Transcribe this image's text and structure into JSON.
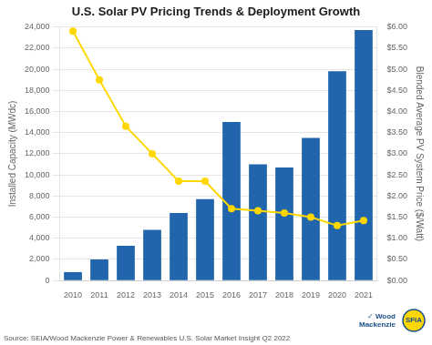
{
  "chart_data": {
    "type": "bar",
    "title": "U.S. Solar PV Pricing Trends & Deployment Growth",
    "categories": [
      "2010",
      "2011",
      "2012",
      "2013",
      "2014",
      "2015",
      "2016",
      "2017",
      "2018",
      "2019",
      "2020",
      "2021"
    ],
    "series": [
      {
        "type": "bar",
        "color": "#2166ac",
        "values": [
          800,
          2000,
          3300,
          4800,
          6400,
          7700,
          15000,
          11000,
          10700,
          13500,
          19800,
          23700
        ]
      },
      {
        "type": "line",
        "color": "#FFD700",
        "axis": "y2",
        "marker": "circle",
        "values": [
          5.9,
          4.75,
          3.65,
          3.0,
          2.35,
          2.35,
          1.7,
          1.65,
          1.6,
          1.5,
          1.3,
          1.42
        ]
      }
    ],
    "ylabel": "Installed Capacity (MWdc)",
    "y2label": "Blended Average PV System Price ($/Watt)",
    "ylim": [
      0,
      24000
    ],
    "yticks": [
      0,
      {
        "value": 2000,
        "label": "2,000"
      },
      {
        "value": 4000,
        "label": "4,000"
      },
      {
        "value": 6000,
        "label": "6,000"
      },
      {
        "value": 8000,
        "label": "8,000"
      },
      {
        "value": 10000,
        "label": "10,000"
      },
      {
        "value": 12000,
        "label": "12,000"
      },
      {
        "value": 14000,
        "label": "14,000"
      },
      {
        "value": 16000,
        "label": "16,000"
      },
      {
        "value": 18000,
        "label": "18,000"
      },
      {
        "value": 20000,
        "label": "20,000"
      },
      {
        "value": 22000,
        "label": "22,000"
      },
      {
        "value": 24000,
        "label": "24,000"
      }
    ],
    "y2lim": [
      0,
      6.0
    ],
    "y2ticks": [
      {
        "value": 0.0,
        "label": "$0.00"
      },
      {
        "value": 0.5,
        "label": "$0.50"
      },
      {
        "value": 1.0,
        "label": "$1.00"
      },
      {
        "value": 1.5,
        "label": "$1.50"
      },
      {
        "value": 2.0,
        "label": "$2.00"
      },
      {
        "value": 2.5,
        "label": "$2.50"
      },
      {
        "value": 3.0,
        "label": "$3.00"
      },
      {
        "value": 3.5,
        "label": "$3.50"
      },
      {
        "value": 4.0,
        "label": "$4.00"
      },
      {
        "value": 4.5,
        "label": "$4.50"
      },
      {
        "value": 5.0,
        "label": "$5.00"
      },
      {
        "value": 5.5,
        "label": "$5.50"
      },
      {
        "value": 6.0,
        "label": "$6.00"
      }
    ],
    "grid": true,
    "annotations": [
      "Source: SEIA/Wood Mackenzie Power & Renewables U.S. Solar Market Insight Q2 2022",
      "✓ Wood\n  Mackenzie",
      "SFIA"
    ]
  }
}
